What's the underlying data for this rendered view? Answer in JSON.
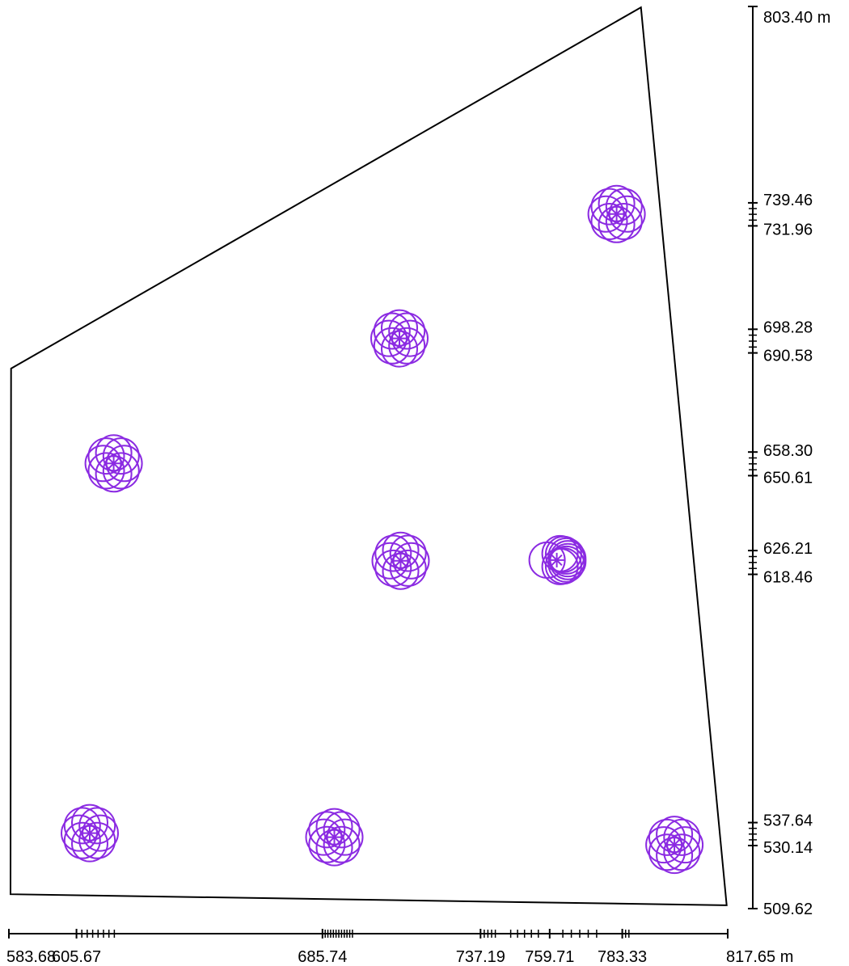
{
  "colors": {
    "boundary": "#000000",
    "axis": "#000000",
    "symbol": "#8b2be2"
  },
  "y_axis": {
    "labels": [
      {
        "text": "803.40 m",
        "value": 803.4
      },
      {
        "text": "739.46",
        "value": 739.46
      },
      {
        "text": "731.96",
        "value": 731.96
      },
      {
        "text": "698.28",
        "value": 698.28
      },
      {
        "text": "690.58",
        "value": 690.58
      },
      {
        "text": "658.30",
        "value": 658.3
      },
      {
        "text": "650.61",
        "value": 650.61
      },
      {
        "text": "626.21",
        "value": 626.21
      },
      {
        "text": "618.46",
        "value": 618.46
      },
      {
        "text": "537.64",
        "value": 537.64
      },
      {
        "text": "530.14",
        "value": 530.14
      },
      {
        "text": "509.62",
        "value": 509.62
      }
    ]
  },
  "x_axis": {
    "labels": [
      {
        "text": "583.68",
        "value": 583.68
      },
      {
        "text": "605.67",
        "value": 605.67
      },
      {
        "text": "685.74",
        "value": 685.74
      },
      {
        "text": "737.19",
        "value": 737.19
      },
      {
        "text": "759.71",
        "value": 759.71
      },
      {
        "text": "783.33",
        "value": 783.33
      },
      {
        "text": "817.65 m",
        "value": 817.65
      }
    ]
  },
  "boundary_vertices": [
    {
      "x": 584.4,
      "y": 685.5
    },
    {
      "x": 789.4,
      "y": 803.1
    },
    {
      "x": 817.3,
      "y": 510.7
    },
    {
      "x": 584.2,
      "y": 514.3
    }
  ],
  "tree_symbols": [
    {
      "x": 781.5,
      "y": 735.8,
      "style": "rosette"
    },
    {
      "x": 710.8,
      "y": 695.3,
      "style": "rosette"
    },
    {
      "x": 617.8,
      "y": 654.6,
      "style": "rosette"
    },
    {
      "x": 711.2,
      "y": 622.9,
      "style": "rosette"
    },
    {
      "x": 762.0,
      "y": 623.1,
      "style": "fan"
    },
    {
      "x": 610.0,
      "y": 534.2,
      "style": "rosette"
    },
    {
      "x": 689.6,
      "y": 532.9,
      "style": "rosette"
    },
    {
      "x": 800.3,
      "y": 530.4,
      "style": "rosette"
    }
  ]
}
